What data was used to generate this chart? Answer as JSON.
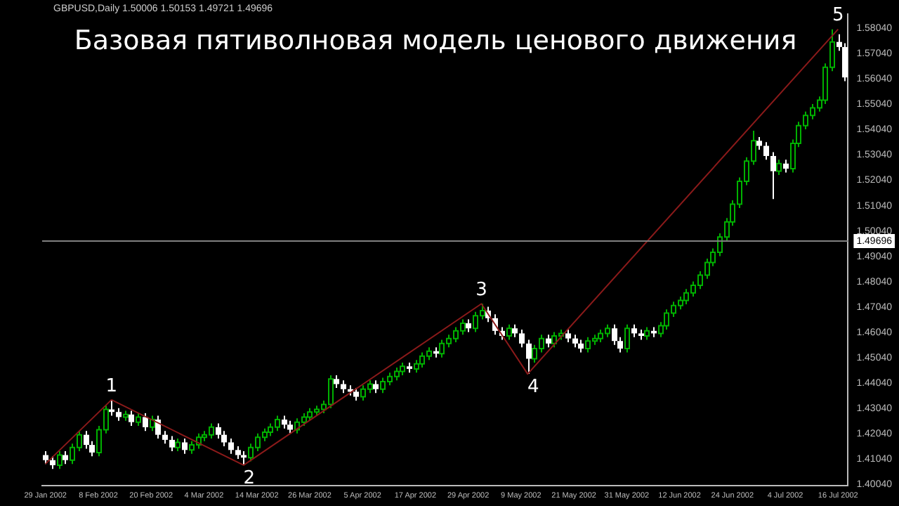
{
  "chart_data": {
    "type": "candlestick",
    "title": "Базовая пятиволновая модель ценового движения",
    "annotations": [
      "GBPUSD,Daily  1.50006 1.50153 1.49721 1.49696",
      {
        "text": "1",
        "y": 1.4338
      },
      {
        "text": "2",
        "y": 1.408
      },
      {
        "text": "3",
        "y": 1.4717
      },
      {
        "text": "4",
        "y": 1.444
      },
      {
        "text": "5",
        "y": 1.58
      }
    ],
    "categories": [
      "29 Jan 2002",
      null,
      null,
      null,
      null,
      null,
      null,
      null,
      "8 Feb 2002",
      null,
      null,
      null,
      null,
      null,
      null,
      null,
      "20 Feb 2002",
      null,
      null,
      null,
      null,
      null,
      null,
      null,
      "4 Mar 2002",
      null,
      null,
      null,
      null,
      null,
      null,
      null,
      "14 Mar 2002",
      null,
      null,
      null,
      null,
      null,
      null,
      null,
      "26 Mar 2002",
      null,
      null,
      null,
      null,
      null,
      null,
      null,
      "5 Apr 2002",
      null,
      null,
      null,
      null,
      null,
      null,
      null,
      "17 Apr 2002",
      null,
      null,
      null,
      null,
      null,
      null,
      null,
      "29 Apr 2002",
      null,
      null,
      null,
      null,
      null,
      null,
      null,
      "9 May 2002",
      null,
      null,
      null,
      null,
      null,
      null,
      null,
      "21 May 2002",
      null,
      null,
      null,
      null,
      null,
      null,
      null,
      "31 May 2002",
      null,
      null,
      null,
      null,
      null,
      null,
      null,
      "12 Jun 2002",
      null,
      null,
      null,
      null,
      null,
      null,
      null,
      "24 Jun 2002",
      null,
      null,
      null,
      null,
      null,
      null,
      null,
      "4 Jul 2002",
      null,
      null,
      null,
      null,
      null,
      null,
      null,
      "16 Jul 2002",
      null
    ],
    "ohlc": [
      [
        1.412,
        1.4135,
        1.4085,
        1.41
      ],
      [
        1.41,
        1.4115,
        1.4065,
        1.408
      ],
      [
        1.408,
        1.4135,
        1.4065,
        1.412
      ],
      [
        1.412,
        1.4135,
        1.4085,
        1.41
      ],
      [
        1.41,
        1.4165,
        1.4085,
        1.415
      ],
      [
        1.415,
        1.4215,
        1.4135,
        1.42
      ],
      [
        1.42,
        1.4215,
        1.4145,
        1.416
      ],
      [
        1.416,
        1.4175,
        1.4115,
        1.413
      ],
      [
        1.413,
        1.4235,
        1.4115,
        1.422
      ],
      [
        1.422,
        1.4315,
        1.4205,
        1.43
      ],
      [
        1.43,
        1.4338,
        1.4275,
        1.429
      ],
      [
        1.429,
        1.4305,
        1.4255,
        1.427
      ],
      [
        1.427,
        1.4295,
        1.4255,
        1.428
      ],
      [
        1.428,
        1.4295,
        1.4235,
        1.425
      ],
      [
        1.425,
        1.4285,
        1.4235,
        1.427
      ],
      [
        1.427,
        1.4285,
        1.4215,
        1.423
      ],
      [
        1.423,
        1.4275,
        1.4215,
        1.426
      ],
      [
        1.426,
        1.4275,
        1.4185,
        1.42
      ],
      [
        1.42,
        1.4215,
        1.4165,
        1.418
      ],
      [
        1.418,
        1.4195,
        1.4135,
        1.415
      ],
      [
        1.415,
        1.4185,
        1.4135,
        1.417
      ],
      [
        1.417,
        1.4185,
        1.4125,
        1.414
      ],
      [
        1.414,
        1.4175,
        1.4125,
        1.416
      ],
      [
        1.416,
        1.4205,
        1.4145,
        1.419
      ],
      [
        1.419,
        1.4215,
        1.4175,
        1.42
      ],
      [
        1.42,
        1.4245,
        1.4185,
        1.423
      ],
      [
        1.423,
        1.4245,
        1.4185,
        1.42
      ],
      [
        1.42,
        1.4215,
        1.4155,
        1.417
      ],
      [
        1.417,
        1.4185,
        1.4125,
        1.414
      ],
      [
        1.414,
        1.4155,
        1.4105,
        1.412
      ],
      [
        1.412,
        1.4135,
        1.408,
        1.411
      ],
      [
        1.411,
        1.4165,
        1.4095,
        1.415
      ],
      [
        1.415,
        1.4205,
        1.4135,
        1.419
      ],
      [
        1.419,
        1.4225,
        1.4175,
        1.421
      ],
      [
        1.421,
        1.4245,
        1.4195,
        1.423
      ],
      [
        1.423,
        1.4275,
        1.4215,
        1.426
      ],
      [
        1.426,
        1.4275,
        1.4225,
        1.424
      ],
      [
        1.424,
        1.4255,
        1.4205,
        1.422
      ],
      [
        1.422,
        1.4265,
        1.4205,
        1.425
      ],
      [
        1.425,
        1.4285,
        1.4235,
        1.427
      ],
      [
        1.427,
        1.4305,
        1.4255,
        1.429
      ],
      [
        1.429,
        1.4315,
        1.4275,
        1.43
      ],
      [
        1.43,
        1.4335,
        1.4285,
        1.432
      ],
      [
        1.432,
        1.4435,
        1.4305,
        1.442
      ],
      [
        1.442,
        1.4435,
        1.4385,
        1.44
      ],
      [
        1.44,
        1.4415,
        1.4365,
        1.438
      ],
      [
        1.438,
        1.4395,
        1.4355,
        1.437
      ],
      [
        1.437,
        1.4385,
        1.4335,
        1.435
      ],
      [
        1.435,
        1.4395,
        1.4335,
        1.438
      ],
      [
        1.438,
        1.4415,
        1.4365,
        1.44
      ],
      [
        1.44,
        1.4415,
        1.4365,
        1.438
      ],
      [
        1.438,
        1.4425,
        1.4365,
        1.441
      ],
      [
        1.441,
        1.4445,
        1.4395,
        1.443
      ],
      [
        1.443,
        1.4465,
        1.4415,
        1.445
      ],
      [
        1.445,
        1.4485,
        1.4435,
        1.447
      ],
      [
        1.447,
        1.4485,
        1.4445,
        1.446
      ],
      [
        1.446,
        1.4495,
        1.4445,
        1.448
      ],
      [
        1.448,
        1.4525,
        1.4465,
        1.451
      ],
      [
        1.451,
        1.4545,
        1.4495,
        1.453
      ],
      [
        1.453,
        1.4545,
        1.4505,
        1.452
      ],
      [
        1.452,
        1.4575,
        1.4505,
        1.456
      ],
      [
        1.456,
        1.4595,
        1.4545,
        1.458
      ],
      [
        1.458,
        1.4625,
        1.4565,
        1.461
      ],
      [
        1.461,
        1.4655,
        1.4595,
        1.464
      ],
      [
        1.464,
        1.4655,
        1.4605,
        1.462
      ],
      [
        1.462,
        1.4685,
        1.4605,
        1.467
      ],
      [
        1.467,
        1.4717,
        1.4655,
        1.469
      ],
      [
        1.469,
        1.4705,
        1.4645,
        1.466
      ],
      [
        1.466,
        1.4675,
        1.4595,
        1.461
      ],
      [
        1.461,
        1.4625,
        1.4575,
        1.459
      ],
      [
        1.459,
        1.4635,
        1.4575,
        1.462
      ],
      [
        1.462,
        1.4635,
        1.4585,
        1.46
      ],
      [
        1.46,
        1.4615,
        1.4545,
        1.456
      ],
      [
        1.456,
        1.4575,
        1.444,
        1.45
      ],
      [
        1.45,
        1.4555,
        1.4485,
        1.454
      ],
      [
        1.454,
        1.4595,
        1.4525,
        1.458
      ],
      [
        1.458,
        1.4595,
        1.4545,
        1.456
      ],
      [
        1.456,
        1.4605,
        1.4545,
        1.459
      ],
      [
        1.459,
        1.4615,
        1.4575,
        1.46
      ],
      [
        1.46,
        1.4615,
        1.4565,
        1.458
      ],
      [
        1.458,
        1.4595,
        1.4545,
        1.456
      ],
      [
        1.456,
        1.4575,
        1.4525,
        1.454
      ],
      [
        1.454,
        1.4585,
        1.4525,
        1.457
      ],
      [
        1.457,
        1.4595,
        1.4555,
        1.458
      ],
      [
        1.458,
        1.4615,
        1.4565,
        1.46
      ],
      [
        1.46,
        1.4635,
        1.4585,
        1.462
      ],
      [
        1.462,
        1.4635,
        1.4555,
        1.457
      ],
      [
        1.457,
        1.4585,
        1.4525,
        1.454
      ],
      [
        1.454,
        1.4635,
        1.4525,
        1.462
      ],
      [
        1.462,
        1.4635,
        1.4585,
        1.46
      ],
      [
        1.46,
        1.4615,
        1.4575,
        1.459
      ],
      [
        1.459,
        1.4625,
        1.4575,
        1.461
      ],
      [
        1.461,
        1.4625,
        1.4585,
        1.46
      ],
      [
        1.46,
        1.4645,
        1.4585,
        1.463
      ],
      [
        1.463,
        1.4695,
        1.4615,
        1.468
      ],
      [
        1.468,
        1.4725,
        1.4665,
        1.471
      ],
      [
        1.471,
        1.4745,
        1.4695,
        1.473
      ],
      [
        1.473,
        1.4775,
        1.4715,
        1.476
      ],
      [
        1.476,
        1.4805,
        1.4745,
        1.479
      ],
      [
        1.479,
        1.4845,
        1.4775,
        1.483
      ],
      [
        1.483,
        1.4895,
        1.4815,
        1.488
      ],
      [
        1.488,
        1.4935,
        1.4865,
        1.492
      ],
      [
        1.492,
        1.4995,
        1.4905,
        1.498
      ],
      [
        1.498,
        1.5055,
        1.4965,
        1.504
      ],
      [
        1.504,
        1.5125,
        1.5025,
        1.511
      ],
      [
        1.511,
        1.5215,
        1.5095,
        1.52
      ],
      [
        1.52,
        1.5295,
        1.5185,
        1.528
      ],
      [
        1.528,
        1.54,
        1.5265,
        1.536
      ],
      [
        1.536,
        1.5375,
        1.5325,
        1.534
      ],
      [
        1.534,
        1.5355,
        1.5285,
        1.53
      ],
      [
        1.53,
        1.5315,
        1.513,
        1.524
      ],
      [
        1.524,
        1.5285,
        1.5225,
        1.527
      ],
      [
        1.527,
        1.5285,
        1.5235,
        1.525
      ],
      [
        1.525,
        1.5365,
        1.5235,
        1.535
      ],
      [
        1.535,
        1.5435,
        1.5335,
        1.542
      ],
      [
        1.542,
        1.5475,
        1.5405,
        1.546
      ],
      [
        1.546,
        1.5505,
        1.5445,
        1.549
      ],
      [
        1.549,
        1.5535,
        1.5475,
        1.552
      ],
      [
        1.552,
        1.5665,
        1.5505,
        1.565
      ],
      [
        1.565,
        1.58,
        1.5635,
        1.575
      ],
      [
        1.575,
        1.578,
        1.5715,
        1.573
      ],
      [
        1.573,
        1.5745,
        1.5595,
        1.561
      ]
    ],
    "series": [
      {
        "type": "line",
        "color": "#8b1a1a",
        "values": [
          1.4085,
          null,
          null,
          null,
          null,
          null,
          null,
          null,
          null,
          null,
          1.4338,
          null,
          null,
          null,
          null,
          null,
          null,
          null,
          null,
          null,
          null,
          null,
          null,
          null,
          null,
          null,
          null,
          null,
          null,
          null,
          1.408,
          null,
          null,
          null,
          null,
          null,
          null,
          null,
          null,
          null,
          null,
          null,
          null,
          null,
          null,
          null,
          null,
          null,
          null,
          null,
          null,
          null,
          null,
          null,
          null,
          null,
          null,
          null,
          null,
          null,
          null,
          null,
          null,
          null,
          null,
          null,
          1.4717,
          null,
          null,
          null,
          null,
          null,
          null,
          1.444,
          null,
          null,
          null,
          null,
          null,
          null,
          null,
          null,
          null,
          null,
          null,
          null,
          null,
          null,
          null,
          null,
          null,
          null,
          null,
          null,
          null,
          null,
          null,
          null,
          null,
          null,
          null,
          null,
          null,
          null,
          null,
          null,
          null,
          null,
          null,
          null,
          null,
          null,
          null,
          null,
          null,
          null,
          null,
          null,
          null,
          null,
          1.58,
          null
        ]
      }
    ],
    "ylim": [
      1.4,
      1.586
    ],
    "yticks": [
      {
        "value": 1.4004,
        "label": "1.40040"
      },
      {
        "value": 1.4104,
        "label": "1.41040"
      },
      {
        "value": 1.4204,
        "label": "1.42040"
      },
      {
        "value": 1.4304,
        "label": "1.43040"
      },
      {
        "value": 1.4404,
        "label": "1.44040"
      },
      {
        "value": 1.4504,
        "label": "1.45040"
      },
      {
        "value": 1.4604,
        "label": "1.46040"
      },
      {
        "value": 1.4704,
        "label": "1.47040"
      },
      {
        "value": 1.4804,
        "label": "1.48040"
      },
      {
        "value": 1.4904,
        "label": "1.49040"
      },
      {
        "value": 1.5004,
        "label": "1.50040"
      },
      {
        "value": 1.5104,
        "label": "1.51040"
      },
      {
        "value": 1.5204,
        "label": "1.52040"
      },
      {
        "value": 1.5304,
        "label": "1.53040"
      },
      {
        "value": 1.5404,
        "label": "1.54040"
      },
      {
        "value": 1.5504,
        "label": "1.55040"
      },
      {
        "value": 1.5604,
        "label": "1.56040"
      },
      {
        "value": 1.5704,
        "label": "1.57040"
      },
      {
        "value": 1.5804,
        "label": "1.58040"
      }
    ],
    "ref_lines": [
      {
        "axis": "y",
        "value": 1.49696,
        "label": "1.49696",
        "color": "#808080"
      }
    ]
  }
}
